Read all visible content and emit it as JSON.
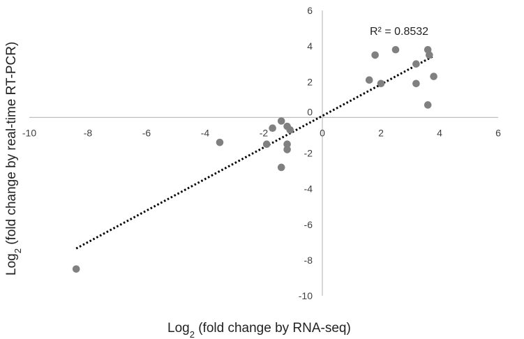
{
  "chart_data": {
    "type": "scatter",
    "title": "",
    "xlabel": "Log",
    "xlabel_sub": "2",
    "xlabel_rest": " (fold change by RNA-seq)",
    "ylabel": "Log",
    "ylabel_sub": "2",
    "ylabel_rest": " (fold change by real-time RT-PCR)",
    "xlim": [
      -10,
      6
    ],
    "ylim": [
      -10,
      6
    ],
    "x_ticks": [
      -10,
      -8,
      -6,
      -4,
      -2,
      0,
      2,
      4,
      6
    ],
    "y_ticks": [
      -10,
      -8,
      -6,
      -4,
      -2,
      0,
      2,
      4,
      6
    ],
    "grid": false,
    "legend": "none",
    "point_color": "#808080",
    "trendline_color": "#000000",
    "r_squared_label": "R² = 0.8532",
    "trendline": {
      "type": "linear",
      "style": "dotted",
      "x_range": [
        -8.4,
        3.8
      ],
      "y_range": [
        -7.35,
        3.45
      ]
    },
    "points": [
      {
        "x": -8.4,
        "y": -8.5
      },
      {
        "x": -3.5,
        "y": -1.4
      },
      {
        "x": -1.9,
        "y": -1.5
      },
      {
        "x": -1.7,
        "y": -0.6
      },
      {
        "x": -1.4,
        "y": -0.2
      },
      {
        "x": -1.2,
        "y": -0.5
      },
      {
        "x": -1.1,
        "y": -0.7
      },
      {
        "x": -1.2,
        "y": -1.5
      },
      {
        "x": -1.2,
        "y": -1.8
      },
      {
        "x": -1.4,
        "y": -2.8
      },
      {
        "x": 1.6,
        "y": 2.1
      },
      {
        "x": 1.8,
        "y": 3.5
      },
      {
        "x": 2.0,
        "y": 1.9
      },
      {
        "x": 2.5,
        "y": 3.8
      },
      {
        "x": 3.2,
        "y": 3.0
      },
      {
        "x": 3.2,
        "y": 1.9
      },
      {
        "x": 3.6,
        "y": 3.8
      },
      {
        "x": 3.65,
        "y": 3.5
      },
      {
        "x": 3.8,
        "y": 2.3
      },
      {
        "x": 3.6,
        "y": 0.7
      }
    ]
  }
}
